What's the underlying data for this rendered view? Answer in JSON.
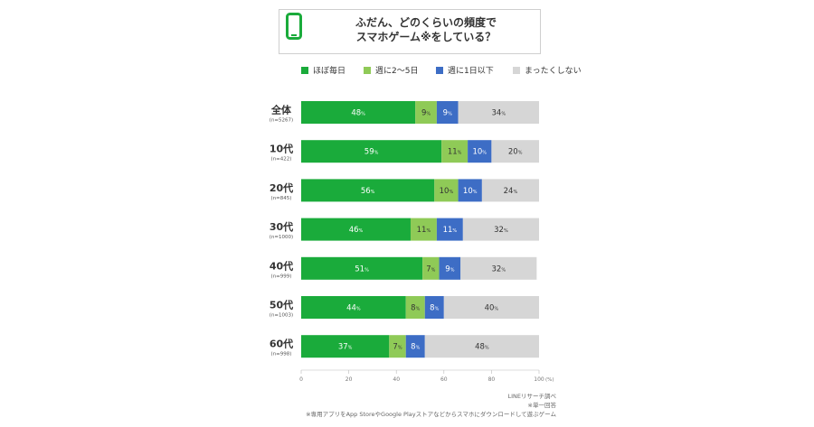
{
  "title": {
    "line1": "ふだん、どのくらいの頻度で",
    "line2": "スマホゲーム※をしている？"
  },
  "icons": {
    "title": "smartphone-icon"
  },
  "chart_data": {
    "type": "bar",
    "orientation": "horizontal",
    "stacked": true,
    "categories": [
      "全体",
      "10代",
      "20代",
      "30代",
      "40代",
      "50代",
      "60代"
    ],
    "category_notes": [
      "(n=5267)",
      "(n=422)",
      "(n=845)",
      "(n=1000)",
      "(n=999)",
      "(n=1003)",
      "(n=998)"
    ],
    "series": [
      {
        "name": "ほぼ毎日",
        "color": "#1aab3b",
        "values": [
          48,
          59,
          56,
          46,
          51,
          44,
          37
        ]
      },
      {
        "name": "週に2〜5日",
        "color": "#8fca57",
        "values": [
          9,
          11,
          10,
          11,
          7,
          8,
          7
        ]
      },
      {
        "name": "週に1日以下",
        "color": "#3d6dc5",
        "values": [
          9,
          10,
          10,
          11,
          9,
          8,
          8
        ]
      },
      {
        "name": "まったくしない",
        "color": "#d6d6d6",
        "values": [
          34,
          20,
          24,
          32,
          32,
          40,
          48
        ]
      }
    ],
    "value_suffix": "%",
    "xlim": [
      0,
      100
    ],
    "xticks": [
      0,
      20,
      40,
      60,
      80,
      100
    ],
    "x_unit": "(%)",
    "grid": false,
    "legend_position": "top"
  },
  "footnotes": {
    "source": "LINEリサーチ調べ",
    "note1": "※単一回答",
    "note2": "※専用アプリをApp StoreやGoogle Playストアなどからスマホにダウンロードして遊ぶゲーム"
  }
}
